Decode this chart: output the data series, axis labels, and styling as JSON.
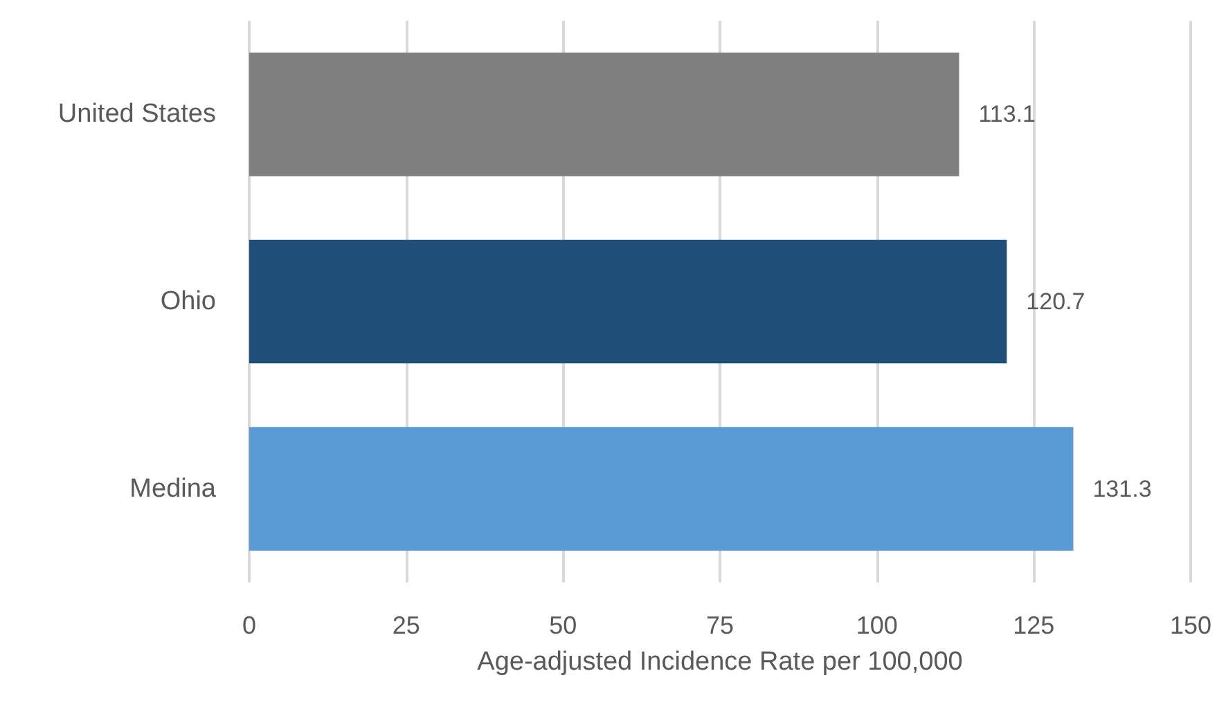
{
  "chart_data": {
    "type": "bar",
    "orientation": "horizontal",
    "categories": [
      "United States",
      "Ohio",
      "Medina"
    ],
    "values": [
      113.1,
      120.7,
      131.3
    ],
    "colors": [
      "#7f7f7f",
      "#1f4e79",
      "#5b9bd5"
    ],
    "xlabel": "Age-adjusted Incidence Rate per 100,000",
    "xlim": [
      0,
      150
    ],
    "xticks": [
      0,
      25,
      50,
      75,
      100,
      125,
      150
    ],
    "grid": "x",
    "data_labels": true
  }
}
